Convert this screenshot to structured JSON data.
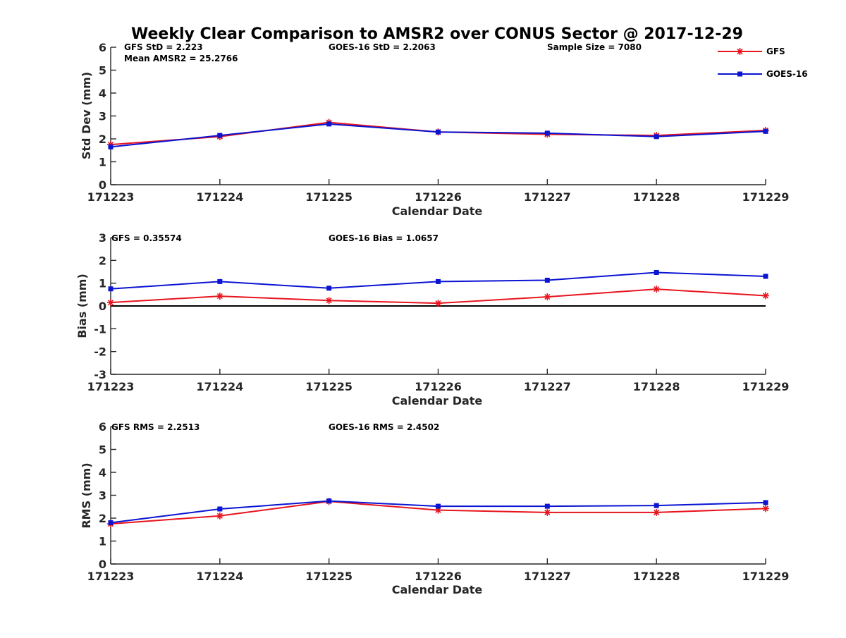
{
  "title": "Weekly Clear Comparison to AMSR2 over CONUS Sector @ 2017-12-29",
  "legend": {
    "items": [
      {
        "name": "GFS",
        "color": "#e8141e",
        "marker": "asterisk"
      },
      {
        "name": "GOES-16",
        "color": "#0a14d2",
        "marker": "square"
      }
    ]
  },
  "chart_data": [
    {
      "type": "line",
      "ylabel": "Std Dev (mm)",
      "xlabel": "Calendar Date",
      "ylim": [
        0,
        6
      ],
      "yticks": [
        "0",
        "1",
        "2",
        "3",
        "4",
        "5",
        "6"
      ],
      "categories": [
        "171223",
        "171224",
        "171225",
        "171226",
        "171227",
        "171228",
        "171229"
      ],
      "series": [
        {
          "name": "GFS",
          "values": [
            1.75,
            2.1,
            2.72,
            2.3,
            2.2,
            2.15,
            2.37
          ]
        },
        {
          "name": "GOES-16",
          "values": [
            1.65,
            2.15,
            2.65,
            2.3,
            2.25,
            2.1,
            2.33
          ]
        }
      ],
      "annotations": {
        "left": "GFS StD = 2.223",
        "left2": "Mean AMSR2 = 25.2766",
        "mid": "GOES-16 StD = 2.2063",
        "right": "Sample Size = 7080"
      }
    },
    {
      "type": "line",
      "ylabel": "Bias (mm)",
      "xlabel": "Calendar Date",
      "ylim": [
        -3,
        3
      ],
      "yticks": [
        "-3",
        "-2",
        "-1",
        "0",
        "1",
        "2",
        "3"
      ],
      "zero_line": true,
      "categories": [
        "171223",
        "171224",
        "171225",
        "171226",
        "171227",
        "171228",
        "171229"
      ],
      "series": [
        {
          "name": "GFS",
          "values": [
            0.15,
            0.43,
            0.24,
            0.12,
            0.4,
            0.74,
            0.45
          ]
        },
        {
          "name": "GOES-16",
          "values": [
            0.75,
            1.07,
            0.78,
            1.07,
            1.13,
            1.47,
            1.3
          ]
        }
      ],
      "annotations": {
        "left": "GFS = 0.35574",
        "mid": "GOES-16 Bias  = 1.0657"
      }
    },
    {
      "type": "line",
      "ylabel": "RMS (mm)",
      "xlabel": "Calendar Date",
      "ylim": [
        0,
        6
      ],
      "yticks": [
        "0",
        "1",
        "2",
        "3",
        "4",
        "5",
        "6"
      ],
      "categories": [
        "171223",
        "171224",
        "171225",
        "171226",
        "171227",
        "171228",
        "171229"
      ],
      "series": [
        {
          "name": "GFS",
          "values": [
            1.75,
            2.1,
            2.73,
            2.35,
            2.25,
            2.25,
            2.42
          ]
        },
        {
          "name": "GOES-16",
          "values": [
            1.8,
            2.4,
            2.75,
            2.52,
            2.52,
            2.55,
            2.68
          ]
        }
      ],
      "annotations": {
        "left": "GFS RMS = 2.2513",
        "mid": "GOES-16 RMS = 2.4502"
      }
    }
  ]
}
